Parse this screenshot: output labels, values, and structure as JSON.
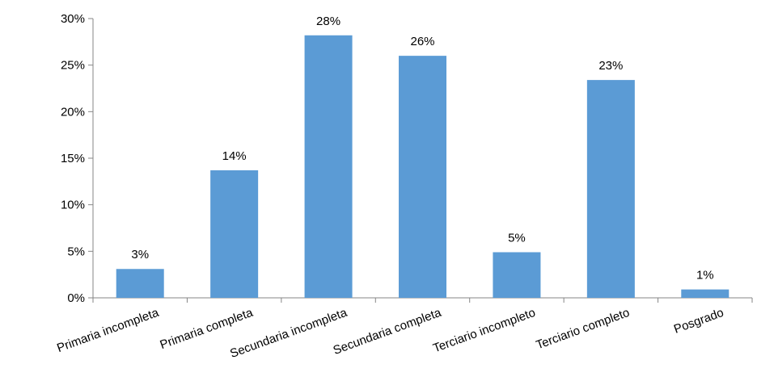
{
  "chart_data": {
    "type": "bar",
    "title": "",
    "xlabel": "",
    "ylabel": "",
    "ylim": [
      0,
      30
    ],
    "yticks": [
      "0%",
      "5%",
      "10%",
      "15%",
      "20%",
      "25%",
      "30%"
    ],
    "grid": false,
    "legend": "none",
    "bar_color": "#5B9BD5",
    "categories": [
      "Primaria incompleta",
      "Primaria completa",
      "Secundaria incompleta",
      "Secundaria completa",
      "Terciario incompleto",
      "Terciario completo",
      "Posgrado"
    ],
    "values": [
      3.1,
      13.7,
      28.2,
      26.0,
      4.9,
      23.4,
      0.9
    ],
    "data_labels": [
      "3%",
      "14%",
      "28%",
      "26%",
      "5%",
      "23%",
      "1%"
    ]
  }
}
